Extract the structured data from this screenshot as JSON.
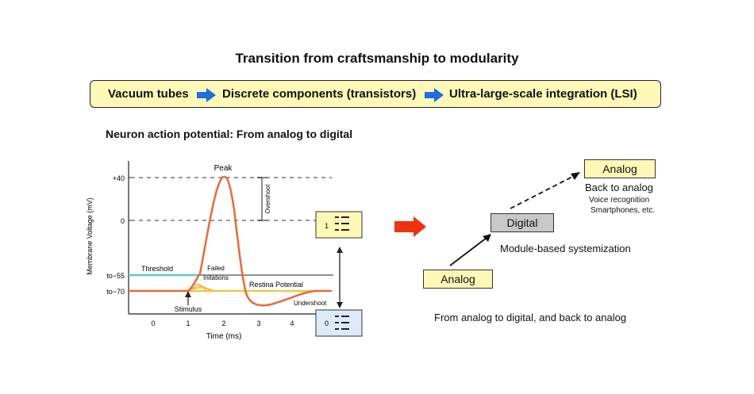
{
  "title": "Transition from craftsmanship to modularity",
  "banner": {
    "steps": [
      "Vacuum tubes",
      "Discrete components (transistors)",
      "Ultra-large-scale integration (LSI)"
    ],
    "arrow_color": "#1e6fe0",
    "fill_color": "#fdf8b6"
  },
  "subtitle": "Neuron action potential: From analog to digital",
  "neuron_chart": {
    "ylabel": "Membrane Voltage (mV)",
    "xlabel": "Time (ms)",
    "x_ticks": [
      "0",
      "1",
      "2",
      "3",
      "4"
    ],
    "y_ticks": [
      "+40",
      "0",
      "to−55",
      "to−70"
    ],
    "labels": {
      "peak": "Peak",
      "overshoot": "Overshoot",
      "threshold": "Threshold",
      "failed": "Failed",
      "initiations": "Initations",
      "resting": "Restina Potential",
      "undershoot": "Undershoot",
      "stimulus": "Stimulus"
    },
    "colors": {
      "action_potential": "#e8693a",
      "threshold": "#5cc6cf",
      "resting": "#e8c94a",
      "failed": "#f0b840"
    },
    "state_one": "1",
    "state_zero": "0"
  },
  "right_diagram": {
    "analog_bottom": "Analog",
    "digital": "Digital",
    "analog_top": "Analog",
    "back_to_analog": "Back to analog",
    "voice_recognition": "Voice recognition",
    "smartphones": "Smartphones, etc.",
    "module_caption": "Module-based systemization",
    "bottom_caption": "From analog to digital, and back to analog",
    "big_arrow_color": "#ee3311"
  }
}
